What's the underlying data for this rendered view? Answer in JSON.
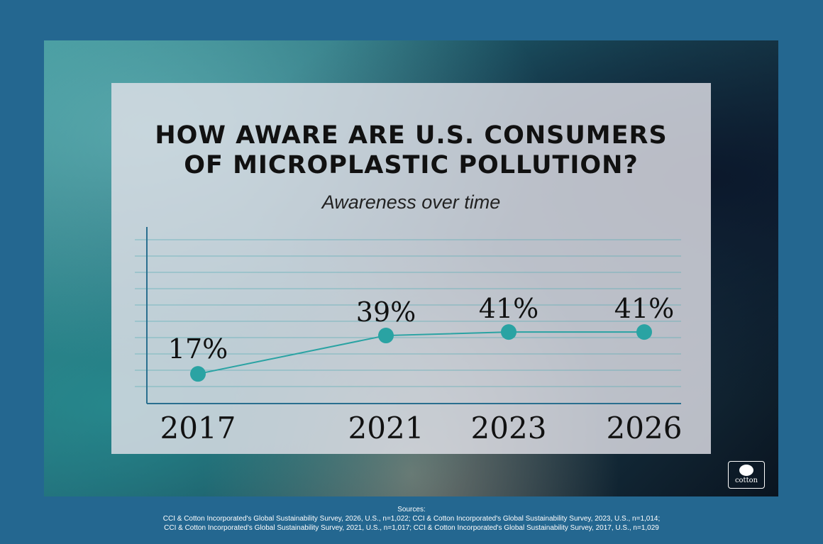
{
  "title_lines": [
    "HOW AWARE ARE U.S. CONSUMERS",
    "OF MICROPLASTIC POLLUTION?"
  ],
  "subtitle": "Awareness over time",
  "chart_data": {
    "type": "line",
    "title": "HOW AWARE ARE U.S. CONSUMERS OF MICROPLASTIC POLLUTION?",
    "subtitle": "Awareness over time",
    "categories": [
      "2017",
      "2021",
      "2023",
      "2026"
    ],
    "values": [
      17,
      39,
      41,
      41
    ],
    "labels": [
      "17%",
      "39%",
      "41%",
      "41%"
    ],
    "unit": "%",
    "grid": true,
    "line_color": "#2aa3a3",
    "ylim": [
      0,
      100
    ]
  },
  "sources": {
    "heading": "Sources:",
    "lines": [
      "CCI & Cotton Incorporated's Global Sustainability Survey, 2026, U.S., n=1,022; CCI & Cotton Incorporated's Global Sustainability Survey, 2023, U.S., n=1,014;",
      "CCI & Cotton Incorporated's Global Sustainability Survey, 2021, U.S., n=1,017; CCI & Cotton Incorporated's Global Sustainability Survey, 2017, U.S., n=1,029"
    ]
  },
  "logo": {
    "text": "cotton"
  },
  "colors": {
    "border": "#246790",
    "accent": "#2aa3a3"
  }
}
